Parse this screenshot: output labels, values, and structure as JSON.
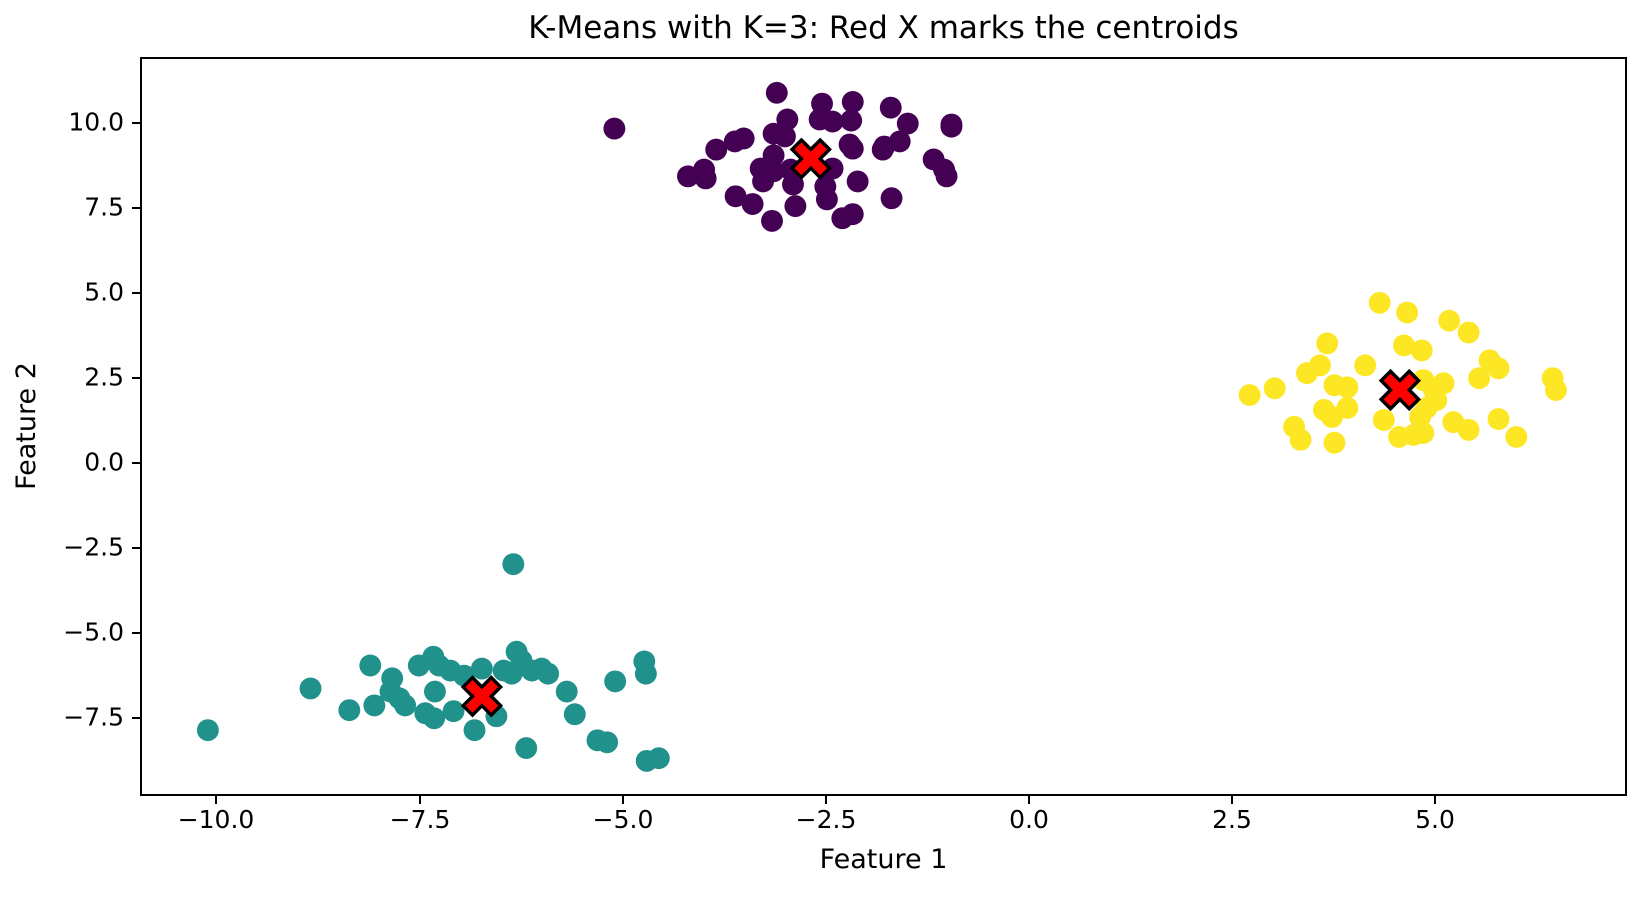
{
  "figure": {
    "background": "#ffffff",
    "spine_color": "#000000"
  },
  "chart_data": {
    "type": "scatter",
    "title": "K-Means with K=3: Red X marks the centroids",
    "xlabel": "Feature 1",
    "ylabel": "Feature 2",
    "grid": false,
    "legend": null,
    "xlim": [
      -10.94,
      7.36
    ],
    "ylim": [
      -9.79,
      11.95
    ],
    "point_radius": 11,
    "x_ticks": [
      {
        "value": -10.0,
        "label": "−10.0"
      },
      {
        "value": -7.5,
        "label": "−7.5"
      },
      {
        "value": -5.0,
        "label": "−5.0"
      },
      {
        "value": -2.5,
        "label": "−2.5"
      },
      {
        "value": 0.0,
        "label": "0.0"
      },
      {
        "value": 2.5,
        "label": "2.5"
      },
      {
        "value": 5.0,
        "label": "5.0"
      }
    ],
    "y_ticks": [
      {
        "value": 10.0,
        "label": "10.0"
      },
      {
        "value": 7.5,
        "label": "7.5"
      },
      {
        "value": 5.0,
        "label": "5.0"
      },
      {
        "value": 2.5,
        "label": "2.5"
      },
      {
        "value": 0.0,
        "label": "0.0"
      },
      {
        "value": -2.5,
        "label": "−2.5"
      },
      {
        "value": -5.0,
        "label": "−5.0"
      },
      {
        "value": -7.5,
        "label": "−7.5"
      }
    ],
    "series": [
      {
        "name": "cluster-0-purple",
        "color": "#440154",
        "points": [
          [
            -5.12,
            9.89
          ],
          [
            -3.11,
            10.95
          ],
          [
            -2.55,
            10.63
          ],
          [
            -2.17,
            10.68
          ],
          [
            -1.7,
            10.51
          ],
          [
            -2.98,
            10.16
          ],
          [
            -2.58,
            10.16
          ],
          [
            -2.42,
            10.1
          ],
          [
            -2.19,
            10.13
          ],
          [
            -1.49,
            10.04
          ],
          [
            -0.95,
            10.01
          ],
          [
            -3.63,
            9.51
          ],
          [
            -3.52,
            9.6
          ],
          [
            -3.15,
            9.74
          ],
          [
            -2.21,
            9.42
          ],
          [
            -1.78,
            9.36
          ],
          [
            -1.59,
            9.51
          ],
          [
            -3.86,
            9.27
          ],
          [
            -3.15,
            9.1
          ],
          [
            -3.31,
            8.71
          ],
          [
            -3.15,
            8.63
          ],
          [
            -2.42,
            8.71
          ],
          [
            -2.17,
            9.3
          ],
          [
            -1.17,
            8.98
          ],
          [
            -1.04,
            8.68
          ],
          [
            -1.01,
            8.48
          ],
          [
            -4.21,
            8.48
          ],
          [
            -3.99,
            8.42
          ],
          [
            -3.28,
            8.33
          ],
          [
            -2.91,
            8.24
          ],
          [
            -2.51,
            8.18
          ],
          [
            -2.11,
            8.33
          ],
          [
            -3.62,
            7.89
          ],
          [
            -3.41,
            7.66
          ],
          [
            -2.88,
            7.6
          ],
          [
            -2.49,
            7.8
          ],
          [
            -1.69,
            7.83
          ],
          [
            -2.3,
            7.24
          ],
          [
            -2.17,
            7.36
          ],
          [
            -1.8,
            9.27
          ],
          [
            -0.95,
            9.95
          ],
          [
            -3.01,
            9.66
          ],
          [
            -4.01,
            8.68
          ],
          [
            -2.94,
            8.68
          ],
          [
            -3.17,
            7.16
          ]
        ]
      },
      {
        "name": "cluster-1-teal",
        "color": "#21918c",
        "points": [
          [
            -6.37,
            -2.99
          ],
          [
            -8.14,
            -5.99
          ],
          [
            -7.36,
            -5.73
          ],
          [
            -7.54,
            -5.99
          ],
          [
            -7.29,
            -5.99
          ],
          [
            -7.15,
            -6.14
          ],
          [
            -6.98,
            -6.29
          ],
          [
            -6.76,
            -6.08
          ],
          [
            -7.87,
            -6.37
          ],
          [
            -6.33,
            -5.58
          ],
          [
            -6.27,
            -5.84
          ],
          [
            -6.49,
            -6.14
          ],
          [
            -6.39,
            -6.23
          ],
          [
            -6.14,
            -6.14
          ],
          [
            -6.02,
            -6.08
          ],
          [
            -5.94,
            -6.23
          ],
          [
            -8.88,
            -6.67
          ],
          [
            -7.89,
            -6.76
          ],
          [
            -7.78,
            -6.96
          ],
          [
            -7.71,
            -7.17
          ],
          [
            -8.4,
            -7.31
          ],
          [
            -8.09,
            -7.17
          ],
          [
            -7.34,
            -6.76
          ],
          [
            -7.46,
            -7.4
          ],
          [
            -7.35,
            -7.55
          ],
          [
            -7.11,
            -7.34
          ],
          [
            -6.85,
            -7.9
          ],
          [
            -6.58,
            -7.49
          ],
          [
            -5.71,
            -6.76
          ],
          [
            -5.61,
            -7.43
          ],
          [
            -6.21,
            -8.43
          ],
          [
            -10.15,
            -7.9
          ],
          [
            -4.75,
            -5.87
          ],
          [
            -4.73,
            -6.23
          ],
          [
            -5.11,
            -6.46
          ],
          [
            -5.33,
            -8.2
          ],
          [
            -5.21,
            -8.26
          ],
          [
            -4.72,
            -8.81
          ],
          [
            -4.57,
            -8.73
          ]
        ]
      },
      {
        "name": "cluster-2-yellow",
        "color": "#fde725",
        "points": [
          [
            4.35,
            4.74
          ],
          [
            4.69,
            4.45
          ],
          [
            5.21,
            4.21
          ],
          [
            5.45,
            3.86
          ],
          [
            3.7,
            3.54
          ],
          [
            4.65,
            3.48
          ],
          [
            4.87,
            3.33
          ],
          [
            5.71,
            3.04
          ],
          [
            5.82,
            2.8
          ],
          [
            4.17,
            2.89
          ],
          [
            3.61,
            2.89
          ],
          [
            3.45,
            2.66
          ],
          [
            3.05,
            2.21
          ],
          [
            2.74,
            2.01
          ],
          [
            3.79,
            2.3
          ],
          [
            3.95,
            2.24
          ],
          [
            4.89,
            2.45
          ],
          [
            5.14,
            2.36
          ],
          [
            5.58,
            2.51
          ],
          [
            6.49,
            2.51
          ],
          [
            6.53,
            2.16
          ],
          [
            5.02,
            2.16
          ],
          [
            5.05,
            1.86
          ],
          [
            4.93,
            1.63
          ],
          [
            3.66,
            1.57
          ],
          [
            3.76,
            1.36
          ],
          [
            3.95,
            1.63
          ],
          [
            4.4,
            1.27
          ],
          [
            4.85,
            1.36
          ],
          [
            3.29,
            1.07
          ],
          [
            3.37,
            0.69
          ],
          [
            3.79,
            0.6
          ],
          [
            4.59,
            0.77
          ],
          [
            4.77,
            0.83
          ],
          [
            4.89,
            0.89
          ],
          [
            5.26,
            1.21
          ],
          [
            5.45,
            0.98
          ],
          [
            5.82,
            1.3
          ],
          [
            6.04,
            0.77
          ]
        ]
      }
    ],
    "centroids": {
      "name": "centroids",
      "marker": "X",
      "fill": "#ff0000",
      "edge": "#000000",
      "size": 40,
      "points": [
        [
          -2.69,
          9.0
        ],
        [
          -6.76,
          -6.9
        ],
        [
          4.6,
          2.16
        ]
      ]
    }
  }
}
